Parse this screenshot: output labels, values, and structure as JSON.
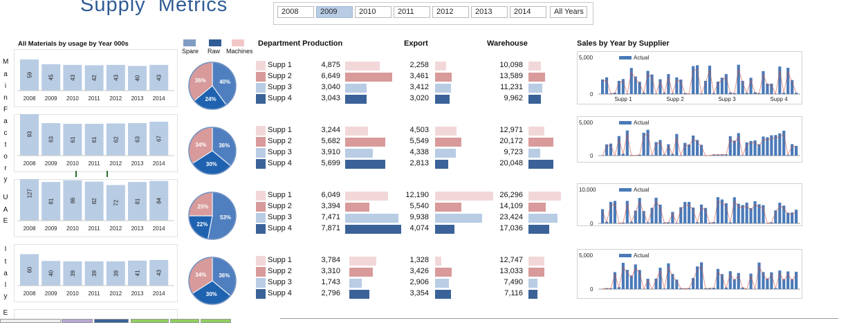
{
  "header": {
    "title": "Supply  Metrics",
    "years": [
      "2008",
      "2009",
      "2010",
      "2011",
      "2012",
      "2013",
      "2014",
      "All Years"
    ],
    "selected_year": "2009"
  },
  "headings": {
    "materials": "All Materials by usage by Year 000s",
    "dept": "Department Production",
    "export": "Export",
    "warehouse": "Warehouse",
    "sales": "Sales by Year by Supplier"
  },
  "pie_legend": [
    {
      "label": "Spare",
      "color": "#7f9cc3"
    },
    {
      "label": "Raw",
      "color": "#2f5b94"
    },
    {
      "label": "Machines",
      "color": "#f2c7c7"
    }
  ],
  "colors": {
    "bar_light": "#b8cce4",
    "pie_pink": "#d89a9a",
    "pie_mid": "#4f7fbf",
    "pie_dark": "#1f62b0",
    "supp1": "#f2d7d9",
    "supp2": "#d89a9a",
    "supp3": "#b8cce4",
    "supp4": "#3a6298",
    "spark_bar": "#4a7ab8",
    "spark_line": "#d24a3a"
  },
  "regions": [
    {
      "name": "Main Factory",
      "letters": [
        "M",
        "a",
        "i",
        "n",
        "F",
        "a",
        "c",
        "t",
        "o",
        "r",
        "y"
      ],
      "materials": {
        "years": [
          "2008",
          "2009",
          "2010",
          "2011",
          "2012",
          "2013",
          "2014"
        ],
        "values": [
          59,
          45,
          43,
          42,
          43,
          40,
          43
        ]
      },
      "pie": [
        {
          "label": "40%",
          "value": 40
        },
        {
          "label": "24%",
          "value": 24
        },
        {
          "label": "36%",
          "value": 36
        }
      ],
      "suppliers": [
        "Supp 1",
        "Supp 2",
        "Supp 3",
        "Supp 4"
      ],
      "dept": [
        "4,875",
        "6,649",
        "3,040",
        "3,043"
      ],
      "export": [
        "2,258",
        "3,461",
        "3,412",
        "3,020"
      ],
      "warehouse": [
        "10,098",
        "13,589",
        "11,231",
        "9,962"
      ],
      "sales": {
        "ymax": "5,000",
        "legend": "Actual",
        "xlabels": [
          "Supp 1",
          "Supp 2",
          "Supp 3",
          "Supp 4"
        ]
      }
    },
    {
      "name": "Factory",
      "letters": [],
      "materials": {
        "years": [
          "2008",
          "2009",
          "2010",
          "2011",
          "2012",
          "2013",
          "2014"
        ],
        "values": [
          93,
          63,
          61,
          61,
          62,
          63,
          67
        ]
      },
      "pie": [
        {
          "label": "36%",
          "value": 36
        },
        {
          "label": "30%",
          "value": 30
        },
        {
          "label": "34%",
          "value": 34
        }
      ],
      "suppliers": [
        "Supp 1",
        "Supp 2",
        "Supp 3",
        "Supp 4"
      ],
      "dept": [
        "3,244",
        "5,682",
        "3,910",
        "5,699"
      ],
      "export": [
        "4,503",
        "5,549",
        "4,338",
        "2,813"
      ],
      "warehouse": [
        "12,971",
        "20,172",
        "9,723",
        "20,048"
      ],
      "sales": {
        "ymax": "5,000",
        "legend": "Actual",
        "xlabels": []
      }
    },
    {
      "name": "UAE",
      "letters": [
        "U",
        "A",
        "E"
      ],
      "materials": {
        "years": [
          "2008",
          "2009",
          "2010",
          "2011",
          "2012",
          "2013",
          "2014"
        ],
        "values": [
          127,
          81,
          86,
          82,
          72,
          81,
          84
        ]
      },
      "pie": [
        {
          "label": "53%",
          "value": 53
        },
        {
          "label": "22%",
          "value": 22
        },
        {
          "label": "25%",
          "value": 25
        }
      ],
      "suppliers": [
        "Supp 1",
        "Supp 2",
        "Supp 3",
        "Supp 4"
      ],
      "dept": [
        "6,049",
        "3,394",
        "7,471",
        "7,871"
      ],
      "export": [
        "12,190",
        "5,540",
        "9,938",
        "4,074"
      ],
      "warehouse": [
        "26,296",
        "14,109",
        "23,424",
        "17,036"
      ],
      "sales": {
        "ymax": "10,000",
        "legend": "Actual",
        "xlabels": []
      }
    },
    {
      "name": "Italy",
      "letters": [
        "I",
        "t",
        "a",
        "l",
        "y"
      ],
      "materials": {
        "years": [
          "2008",
          "2009",
          "2010",
          "2011",
          "2012",
          "2013",
          "2014"
        ],
        "values": [
          60,
          40,
          39,
          39,
          39,
          41,
          43
        ]
      },
      "pie": [
        {
          "label": "36%",
          "value": 36
        },
        {
          "label": "30%",
          "value": 30
        },
        {
          "label": "34%",
          "value": 34
        }
      ],
      "suppliers": [
        "Supp 1",
        "Supp 2",
        "Supp 3",
        "Supp 4"
      ],
      "dept": [
        "3,784",
        "3,310",
        "1,743",
        "2,796"
      ],
      "export": [
        "1,328",
        "3,426",
        "2,906",
        "3,354"
      ],
      "warehouse": [
        "12,747",
        "13,033",
        "7,490",
        "7,116"
      ],
      "sales": {
        "ymax": "5,000",
        "legend": "Actual",
        "xlabels": []
      }
    }
  ],
  "extra_letter": "E"
}
